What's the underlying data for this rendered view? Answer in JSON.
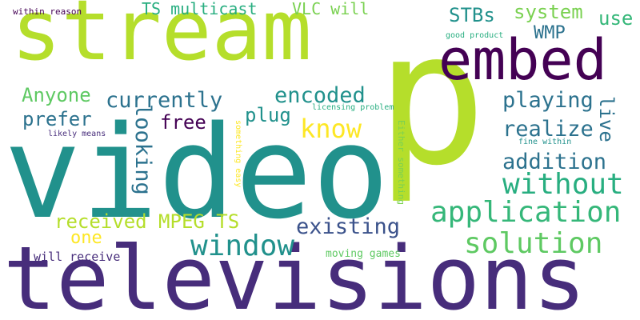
{
  "words": {
    "stream": "stream",
    "p": "p",
    "video": "video",
    "televisions": "televisions",
    "embed": "embed",
    "application": "application",
    "window": "window",
    "solution": "solution",
    "without": "without",
    "know": "know",
    "realize": "realize",
    "addition": "addition",
    "playing": "playing",
    "encoded": "encoded",
    "currently": "currently",
    "looking": "looking",
    "existing": "existing",
    "received_mpeg_ts": "received MPEG TS",
    "anyone": "Anyone",
    "prefer": "prefer",
    "free": "free",
    "plug": "plug",
    "one": "one",
    "live": "live",
    "stbs": "STBs",
    "system": "system",
    "use": "use",
    "wmp": "WMP",
    "ts_multicast": "TS multicast",
    "vlc_will": "VLC will",
    "will_receive": "will receive",
    "moving_games": "moving games",
    "within_reason": "within reason",
    "good_product": "good product",
    "licensing_problem": "licensing problem",
    "likely_means": "likely means",
    "fine_within": "fine within",
    "something_easy": "something easy",
    "either_something": "Either something"
  }
}
